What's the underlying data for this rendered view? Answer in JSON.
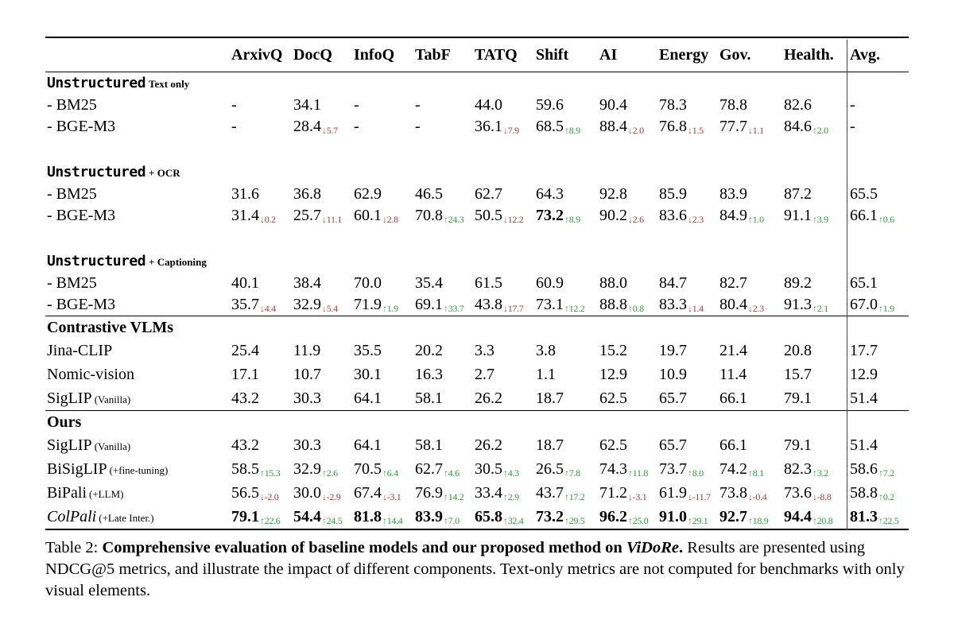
{
  "colors": {
    "up_green": "#2f9b3a",
    "down_red": "#b03a33",
    "text": "#000000"
  },
  "table": {
    "columns": [
      "ArxivQ",
      "DocQ",
      "InfoQ",
      "TabF",
      "TATQ",
      "Shift",
      "AI",
      "Energy",
      "Gov.",
      "Health.",
      "Avg."
    ],
    "sections": [
      {
        "title": "Unstructured",
        "title_style": "mono",
        "title_suffix": "Text only",
        "rows": [
          {
            "label": "- BM25",
            "cells": [
              {
                "v": "-"
              },
              {
                "v": "34.1"
              },
              {
                "v": "-"
              },
              {
                "v": "-"
              },
              {
                "v": "44.0"
              },
              {
                "v": "59.6"
              },
              {
                "v": "90.4"
              },
              {
                "v": "78.3"
              },
              {
                "v": "78.8"
              },
              {
                "v": "82.6"
              },
              {
                "v": "-"
              }
            ]
          },
          {
            "label": "- BGE-M3",
            "cells": [
              {
                "v": "-"
              },
              {
                "v": "28.4",
                "d": "5.7",
                "dir": "down"
              },
              {
                "v": "-"
              },
              {
                "v": "-"
              },
              {
                "v": "36.1",
                "d": "7.9",
                "dir": "down"
              },
              {
                "v": "68.5",
                "d": "8.9",
                "dir": "up"
              },
              {
                "v": "88.4",
                "d": "2.0",
                "dir": "down"
              },
              {
                "v": "76.8",
                "d": "1.5",
                "dir": "down"
              },
              {
                "v": "77.7",
                "d": "1.1",
                "dir": "down"
              },
              {
                "v": "84.6",
                "d": "2.0",
                "dir": "up"
              },
              {
                "v": "-"
              }
            ]
          }
        ]
      },
      {
        "title": "Unstructured",
        "title_style": "mono",
        "title_suffix": "+ OCR",
        "rows": [
          {
            "label": "- BM25",
            "cells": [
              {
                "v": "31.6"
              },
              {
                "v": "36.8"
              },
              {
                "v": "62.9"
              },
              {
                "v": "46.5"
              },
              {
                "v": "62.7"
              },
              {
                "v": "64.3"
              },
              {
                "v": "92.8"
              },
              {
                "v": "85.9"
              },
              {
                "v": "83.9"
              },
              {
                "v": "87.2"
              },
              {
                "v": "65.5"
              }
            ]
          },
          {
            "label": "- BGE-M3",
            "cells": [
              {
                "v": "31.4",
                "d": "0.2",
                "dir": "down"
              },
              {
                "v": "25.7",
                "d": "11.1",
                "dir": "down"
              },
              {
                "v": "60.1",
                "d": "2.8",
                "dir": "down"
              },
              {
                "v": "70.8",
                "d": "24.3",
                "dir": "up"
              },
              {
                "v": "50.5",
                "d": "12.2",
                "dir": "down"
              },
              {
                "v": "73.2",
                "d": "8.9",
                "dir": "up",
                "b": true
              },
              {
                "v": "90.2",
                "d": "2.6",
                "dir": "down"
              },
              {
                "v": "83.6",
                "d": "2.3",
                "dir": "down"
              },
              {
                "v": "84.9",
                "d": "1.0",
                "dir": "up"
              },
              {
                "v": "91.1",
                "d": "3.9",
                "dir": "up"
              },
              {
                "v": "66.1",
                "d": "0.6",
                "dir": "up"
              }
            ]
          }
        ]
      },
      {
        "title": "Unstructured",
        "title_style": "mono",
        "title_suffix": "+ Captioning",
        "rows": [
          {
            "label": "- BM25",
            "cells": [
              {
                "v": "40.1"
              },
              {
                "v": "38.4"
              },
              {
                "v": "70.0"
              },
              {
                "v": "35.4"
              },
              {
                "v": "61.5"
              },
              {
                "v": "60.9"
              },
              {
                "v": "88.0"
              },
              {
                "v": "84.7"
              },
              {
                "v": "82.7"
              },
              {
                "v": "89.2"
              },
              {
                "v": "65.1"
              }
            ]
          },
          {
            "label": "- BGE-M3",
            "cells": [
              {
                "v": "35.7",
                "d": "4.4",
                "dir": "down"
              },
              {
                "v": "32.9",
                "d": "5.4",
                "dir": "down"
              },
              {
                "v": "71.9",
                "d": "1.9",
                "dir": "up"
              },
              {
                "v": "69.1",
                "d": "33.7",
                "dir": "up"
              },
              {
                "v": "43.8",
                "d": "17.7",
                "dir": "down"
              },
              {
                "v": "73.1",
                "d": "12.2",
                "dir": "up"
              },
              {
                "v": "88.8",
                "d": "0.8",
                "dir": "up"
              },
              {
                "v": "83.3",
                "d": "1.4",
                "dir": "down"
              },
              {
                "v": "80.4",
                "d": "2.3",
                "dir": "down"
              },
              {
                "v": "91.3",
                "d": "2.1",
                "dir": "up"
              },
              {
                "v": "67.0",
                "d": "1.9",
                "dir": "up"
              }
            ]
          }
        ],
        "rule_after": true
      },
      {
        "title": "Contrastive VLMs",
        "title_style": "serif",
        "title_suffix": "",
        "big": true,
        "rows": [
          {
            "label": "Jina-CLIP",
            "cells": [
              {
                "v": "25.4"
              },
              {
                "v": "11.9"
              },
              {
                "v": "35.5"
              },
              {
                "v": "20.2"
              },
              {
                "v": "3.3"
              },
              {
                "v": "3.8"
              },
              {
                "v": "15.2"
              },
              {
                "v": "19.7"
              },
              {
                "v": "21.4"
              },
              {
                "v": "20.8"
              },
              {
                "v": "17.7"
              }
            ]
          },
          {
            "label": "Nomic-vision",
            "cells": [
              {
                "v": "17.1"
              },
              {
                "v": "10.7"
              },
              {
                "v": "30.1"
              },
              {
                "v": "16.3"
              },
              {
                "v": "2.7"
              },
              {
                "v": "1.1"
              },
              {
                "v": "12.9"
              },
              {
                "v": "10.9"
              },
              {
                "v": "11.4"
              },
              {
                "v": "15.7"
              },
              {
                "v": "12.9"
              }
            ]
          },
          {
            "label": "SigLIP",
            "label_suffix": "(Vanilla)",
            "cells": [
              {
                "v": "43.2"
              },
              {
                "v": "30.3"
              },
              {
                "v": "64.1"
              },
              {
                "v": "58.1"
              },
              {
                "v": "26.2"
              },
              {
                "v": "18.7"
              },
              {
                "v": "62.5"
              },
              {
                "v": "65.7"
              },
              {
                "v": "66.1"
              },
              {
                "v": "79.1"
              },
              {
                "v": "51.4"
              }
            ]
          }
        ],
        "rule_after": true
      },
      {
        "title": "Ours",
        "title_style": "serif",
        "title_suffix": "",
        "big": true,
        "rows": [
          {
            "label": "SigLIP",
            "label_suffix": "(Vanilla)",
            "cells": [
              {
                "v": "43.2"
              },
              {
                "v": "30.3"
              },
              {
                "v": "64.1"
              },
              {
                "v": "58.1"
              },
              {
                "v": "26.2"
              },
              {
                "v": "18.7"
              },
              {
                "v": "62.5"
              },
              {
                "v": "65.7"
              },
              {
                "v": "66.1"
              },
              {
                "v": "79.1"
              },
              {
                "v": "51.4"
              }
            ]
          },
          {
            "label": "BiSigLIP",
            "label_suffix": "(+fine-tuning)",
            "cells": [
              {
                "v": "58.5",
                "d": "15.3",
                "dir": "up"
              },
              {
                "v": "32.9",
                "d": "2.6",
                "dir": "up"
              },
              {
                "v": "70.5",
                "d": "6.4",
                "dir": "up"
              },
              {
                "v": "62.7",
                "d": "4.6",
                "dir": "up"
              },
              {
                "v": "30.5",
                "d": "4.3",
                "dir": "up"
              },
              {
                "v": "26.5",
                "d": "7.8",
                "dir": "up"
              },
              {
                "v": "74.3",
                "d": "11.8",
                "dir": "up"
              },
              {
                "v": "73.7",
                "d": "8.0",
                "dir": "up"
              },
              {
                "v": "74.2",
                "d": "8.1",
                "dir": "up"
              },
              {
                "v": "82.3",
                "d": "3.2",
                "dir": "up"
              },
              {
                "v": "58.6",
                "d": "7.2",
                "dir": "up"
              }
            ]
          },
          {
            "label": "BiPali",
            "label_suffix": "(+LLM)",
            "cells": [
              {
                "v": "56.5",
                "d": "-2.0",
                "dir": "down"
              },
              {
                "v": "30.0",
                "d": "-2.9",
                "dir": "down"
              },
              {
                "v": "67.4",
                "d": "-3.1",
                "dir": "down"
              },
              {
                "v": "76.9",
                "d": "14.2",
                "dir": "up"
              },
              {
                "v": "33.4",
                "d": "2.9",
                "dir": "up"
              },
              {
                "v": "43.7",
                "d": "17.2",
                "dir": "up"
              },
              {
                "v": "71.2",
                "d": "-3.1",
                "dir": "down"
              },
              {
                "v": "61.9",
                "d": "-11.7",
                "dir": "down"
              },
              {
                "v": "73.8",
                "d": "-0.4",
                "dir": "down"
              },
              {
                "v": "73.6",
                "d": "-8.8",
                "dir": "down"
              },
              {
                "v": "58.8",
                "d": "0.2",
                "dir": "up"
              }
            ]
          },
          {
            "label": "ColPali",
            "label_suffix": "(+Late Inter.)",
            "label_italic": true,
            "cells": [
              {
                "v": "79.1",
                "d": "22.6",
                "dir": "up",
                "b": true
              },
              {
                "v": "54.4",
                "d": "24.5",
                "dir": "up",
                "b": true
              },
              {
                "v": "81.8",
                "d": "14.4",
                "dir": "up",
                "b": true
              },
              {
                "v": "83.9",
                "d": "7.0",
                "dir": "up",
                "b": true
              },
              {
                "v": "65.8",
                "d": "32.4",
                "dir": "up",
                "b": true
              },
              {
                "v": "73.2",
                "d": "29.5",
                "dir": "up",
                "b": true
              },
              {
                "v": "96.2",
                "d": "25.0",
                "dir": "up",
                "b": true
              },
              {
                "v": "91.0",
                "d": "29.1",
                "dir": "up",
                "b": true
              },
              {
                "v": "92.7",
                "d": "18.9",
                "dir": "up",
                "b": true
              },
              {
                "v": "94.4",
                "d": "20.8",
                "dir": "up",
                "b": true
              },
              {
                "v": "81.3",
                "d": "22.5",
                "dir": "up",
                "b": true
              }
            ]
          }
        ]
      }
    ]
  },
  "caption": {
    "prefix": "Table 2:",
    "bold": "Comprehensive evaluation of baseline models and our proposed method on",
    "bold_italic": "ViDoRe",
    "bold_period": ".",
    "text": "Results are presented using NDCG@5 metrics, and illustrate the impact of different components. Text-only metrics are not computed for benchmarks with only visual elements."
  }
}
